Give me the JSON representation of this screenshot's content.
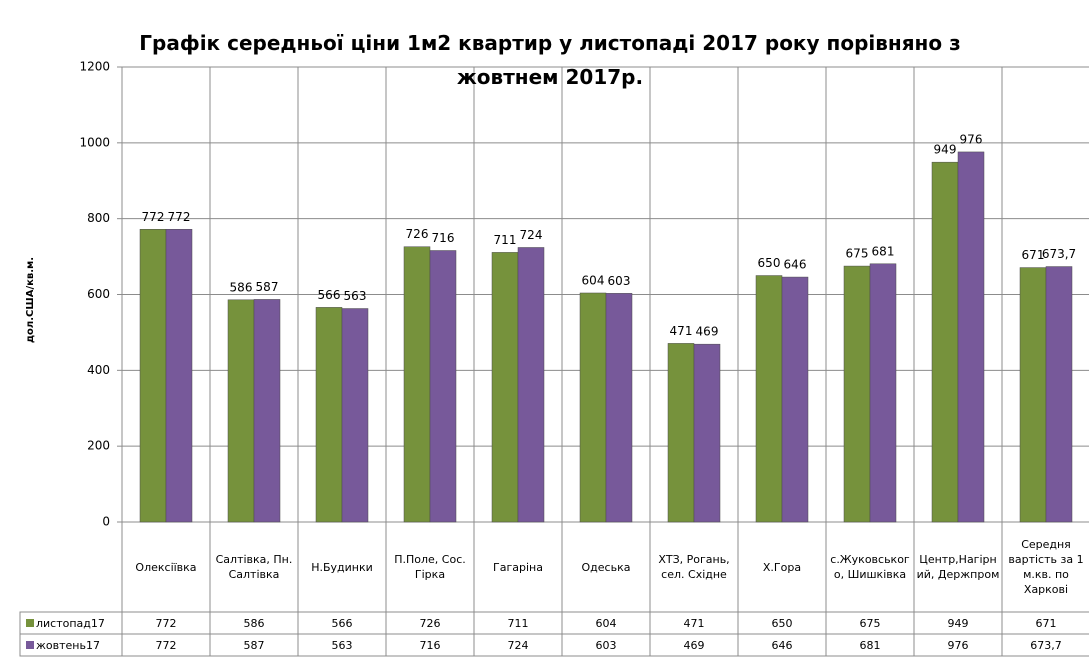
{
  "chart_data": {
    "type": "bar",
    "title": "Графік середньої ціни 1м2 квартир у листопаді 2017 року порівняно з жовтнем 2017р.",
    "y_label": "дол.США/кв.м.",
    "categories": [
      "Олексіївка",
      "Салтівка, Пн. Салтівка",
      "Н.Будинки",
      "П.Поле, Сос. Гірка",
      "Гагаріна",
      "Одеська",
      "ХТЗ, Рогань, сел. Східне",
      "Х.Гора",
      "с.Жуковського, Шишківка",
      "Центр,Нагірний, Держпром",
      "Середня вартість за 1 м.кв. по Харкові"
    ],
    "series": [
      {
        "name": "листопад17",
        "color": "#76923c",
        "values": [
          772,
          586,
          566,
          726,
          711,
          604,
          471,
          650,
          675,
          949,
          671
        ]
      },
      {
        "name": "жовтень17",
        "color": "#77599a",
        "values": [
          772,
          587,
          563,
          716,
          724,
          603,
          469,
          646,
          681,
          976,
          673.7
        ],
        "value_labels": [
          "772",
          "587",
          "563",
          "716",
          "724",
          "603",
          "469",
          "646",
          "681",
          "976",
          "673,7"
        ]
      }
    ],
    "ylim": [
      0,
      1200
    ],
    "yticks": [
      0,
      200,
      400,
      600,
      800,
      1000,
      1200
    ],
    "grid": true
  }
}
